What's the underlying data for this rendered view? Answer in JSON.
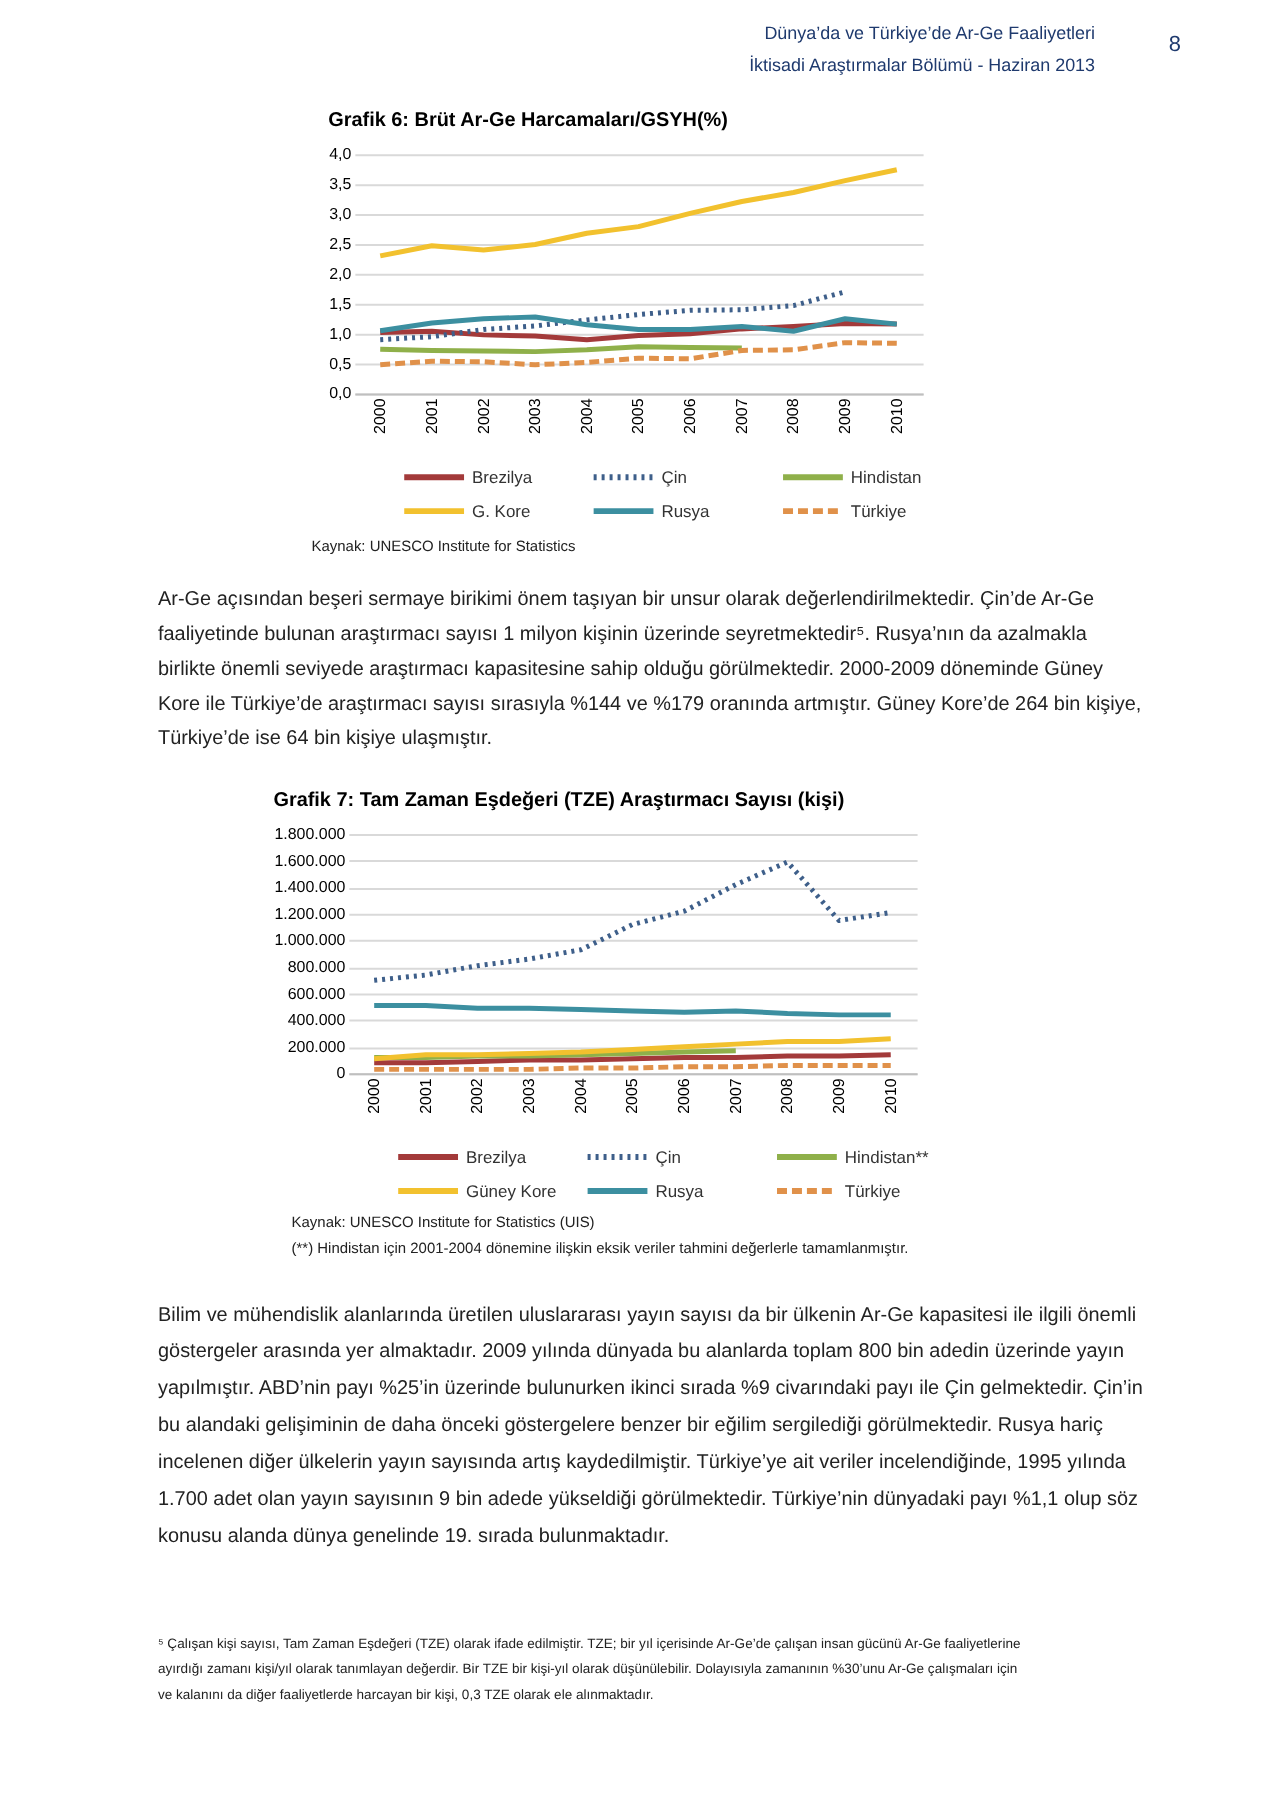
{
  "chart_data": [
    {
      "type": "line",
      "title": "Grafik 6: Brüt Ar-Ge Harcamaları/GSYH(%)",
      "categories": [
        "2000",
        "2001",
        "2002",
        "2003",
        "2004",
        "2005",
        "2006",
        "2007",
        "2008",
        "2009",
        "2010"
      ],
      "series": [
        {
          "name": "Brezilya",
          "color": "#a33a3a",
          "line_style": "solid",
          "values": [
            1.02,
            1.04,
            0.98,
            0.96,
            0.9,
            0.97,
            1.0,
            1.08,
            1.12,
            1.17,
            1.16
          ]
        },
        {
          "name": "Çin",
          "color": "#3e5f8a",
          "line_style": "dotted",
          "values": [
            0.9,
            0.95,
            1.07,
            1.13,
            1.23,
            1.32,
            1.39,
            1.4,
            1.47,
            1.7,
            null
          ]
        },
        {
          "name": "Hindistan",
          "color": "#8fb04a",
          "line_style": "solid",
          "values": [
            0.74,
            0.72,
            0.71,
            0.7,
            0.73,
            0.78,
            0.77,
            0.76,
            null,
            null,
            null
          ]
        },
        {
          "name": "G. Kore",
          "color": "#f2c12e",
          "line_style": "solid",
          "values": [
            2.3,
            2.47,
            2.4,
            2.49,
            2.68,
            2.79,
            3.01,
            3.21,
            3.36,
            3.56,
            3.74
          ]
        },
        {
          "name": "Rusya",
          "color": "#3c8fa0",
          "line_style": "solid",
          "values": [
            1.05,
            1.18,
            1.25,
            1.28,
            1.15,
            1.07,
            1.07,
            1.12,
            1.04,
            1.25,
            1.16
          ]
        },
        {
          "name": "Türkiye",
          "color": "#e0914a",
          "line_style": "dashed",
          "values": [
            0.48,
            0.54,
            0.53,
            0.48,
            0.52,
            0.59,
            0.58,
            0.72,
            0.73,
            0.85,
            0.84
          ]
        }
      ],
      "ylim": [
        0,
        4
      ],
      "yticks": [
        {
          "value": 0,
          "label": "0,0"
        },
        {
          "value": 0.5,
          "label": "0,5"
        },
        {
          "value": 1,
          "label": "1,0"
        },
        {
          "value": 1.5,
          "label": "1,5"
        },
        {
          "value": 2,
          "label": "2,0"
        },
        {
          "value": 2.5,
          "label": "2,5"
        },
        {
          "value": 3,
          "label": "3,0"
        },
        {
          "value": 3.5,
          "label": "3,5"
        },
        {
          "value": 4,
          "label": "4,0"
        }
      ],
      "grid": "y",
      "legend": "bottom",
      "annotations": [
        "Dünya’da ve Türkiye’de Ar-Ge Faaliyetleri",
        "İktisadi Araştırmalar Bölümü - Haziran 2013",
        "8",
        "Kaynak: UNESCO Institute for Statistics",
        "Ar-Ge açısından beşeri sermaye birikimi önem taşıyan bir unsur olarak değerlendirilmektedir. Çin’de Ar-Ge",
        "faaliyetinde bulunan araştırmacı sayısı 1 milyon kişinin üzerinde seyretmektedir⁵. Rusya’nın da azalmakla",
        "birlikte önemli seviyede araştırmacı kapasitesine sahip olduğu görülmektedir. 2000-2009 döneminde Güney",
        "Kore ile Türkiye’de araştırmacı sayısı sırasıyla %144 ve %179 oranında artmıştır. Güney Kore’de 264 bin kişiye,",
        "Türkiye’de ise 64 bin kişiye ulaşmıştır."
      ]
    },
    {
      "type": "line",
      "title": "Grafik 7: Tam Zaman Eşdeğeri (TZE) Araştırmacı Sayısı (kişi)",
      "categories": [
        "2000",
        "2001",
        "2002",
        "2003",
        "2004",
        "2005",
        "2006",
        "2007",
        "2008",
        "2009",
        "2010"
      ],
      "series": [
        {
          "name": "Brezilya",
          "color": "#a33a3a",
          "line_style": "solid",
          "values": [
            80000,
            80000,
            90000,
            100000,
            100000,
            110000,
            120000,
            120000,
            130000,
            130000,
            140000
          ]
        },
        {
          "name": "Çin",
          "color": "#3e5f8a",
          "line_style": "dotted",
          "values": [
            700000,
            740000,
            810000,
            860000,
            930000,
            1120000,
            1220000,
            1420000,
            1590000,
            1150000,
            1210000
          ]
        },
        {
          "name": "Hindistan**",
          "color": "#8fb04a",
          "line_style": "solid",
          "values": [
            120000,
            120000,
            130000,
            130000,
            140000,
            150000,
            160000,
            170000,
            null,
            null,
            null
          ]
        },
        {
          "name": "Güney Kore",
          "color": "#f2c12e",
          "line_style": "solid",
          "values": [
            110000,
            140000,
            140000,
            150000,
            160000,
            180000,
            200000,
            220000,
            240000,
            240000,
            260000
          ]
        },
        {
          "name": "Rusya",
          "color": "#3c8fa0",
          "line_style": "solid",
          "values": [
            510000,
            510000,
            490000,
            490000,
            480000,
            470000,
            460000,
            470000,
            450000,
            440000,
            440000
          ]
        },
        {
          "name": "Türkiye",
          "color": "#e0914a",
          "line_style": "dashed",
          "values": [
            30000,
            30000,
            30000,
            30000,
            40000,
            40000,
            50000,
            50000,
            60000,
            60000,
            60000
          ]
        }
      ],
      "ylim": [
        0,
        1800000
      ],
      "yticks": [
        0,
        {
          "value": 200000,
          "label": "200.000"
        },
        {
          "value": 400000,
          "label": "400.000"
        },
        {
          "value": 600000,
          "label": "600.000"
        },
        {
          "value": 800000,
          "label": "800.000"
        },
        {
          "value": 1000000,
          "label": "1.000.000"
        },
        {
          "value": 1200000,
          "label": "1.200.000"
        },
        {
          "value": 1400000,
          "label": "1.400.000"
        },
        {
          "value": 1600000,
          "label": "1.600.000"
        },
        {
          "value": 1800000,
          "label": "1.800.000"
        }
      ],
      "grid": "y",
      "legend": "bottom",
      "annotations": [
        "Kaynak: UNESCO Institute for Statistics (UIS)",
        "(**) Hindistan için 2001-2004 dönemine ilişkin eksik veriler tahmini değerlerle tamamlanmıştır.",
        "Bilim ve mühendislik alanlarında üretilen uluslararası yayın sayısı da bir ülkenin Ar-Ge kapasitesi ile ilgili önemli",
        "göstergeler arasında yer almaktadır. 2009 yılında dünyada bu alanlarda toplam 800 bin adedin üzerinde yayın",
        "yapılmıştır. ABD’nin payı %25’in üzerinde bulunurken ikinci sırada %9 civarındaki payı ile Çin gelmektedir. Çin’in",
        "bu alandaki gelişiminin de daha önceki göstergelere benzer bir eğilim sergilediği görülmektedir. Rusya hariç",
        "incelenen diğer ülkelerin yayın sayısında artış kaydedilmiştir. Türkiye’ye ait veriler incelendiğinde, 1995 yılında",
        "1.700 adet olan yayın sayısının 9 bin adede yükseldiği görülmektedir. Türkiye’nin dünyadaki payı %1,1 olup söz",
        "konusu alanda dünya genelinde 19. sırada bulunmaktadır.",
        "⁵ Çalışan kişi sayısı, Tam Zaman Eşdeğeri (TZE) olarak ifade edilmiştir. TZE; bir yıl içerisinde Ar-Ge’de çalışan insan gücünü Ar-Ge faaliyetlerine",
        "ayırdığı zamanı kişi/yıl olarak tanımlayan değerdir. Bir TZE bir kişi-yıl olarak düşünülebilir. Dolayısıyla zamanının %30’unu Ar-Ge çalışmaları için",
        "ve kalanını da diğer faaliyetlerde harcayan bir kişi, 0,3 TZE olarak ele alınmaktadır."
      ]
    }
  ]
}
